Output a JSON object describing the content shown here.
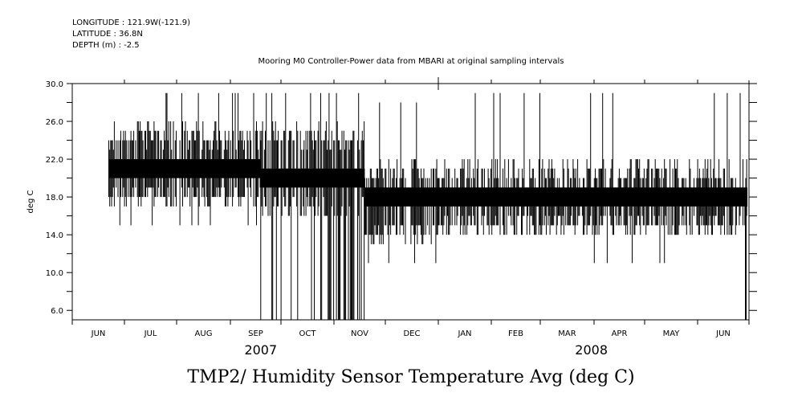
{
  "header": {
    "longitude": "LONGITUDE : 121.9W(-121.9)",
    "latitude": "LATITUDE : 36.8N",
    "depth": "DEPTH (m) : -2.5"
  },
  "colors": {
    "ink": "#000000",
    "background": "#ffffff"
  },
  "chart_data": {
    "type": "line",
    "title": "Mooring M0 Controller-Power data from MBARI at original sampling intervals",
    "xlabel_main": "TMP2/ Humidity Sensor Temperature Avg (deg C)",
    "ylabel": "deg C",
    "ylim": [
      5.0,
      30.0
    ],
    "yticks_labeled": [
      "30.0",
      "26.0",
      "22.0",
      "18.0",
      "14.0",
      "10.0",
      "6.0"
    ],
    "ytick_values": [
      30,
      26,
      22,
      18,
      14,
      10,
      6
    ],
    "yminor_values": [
      28,
      24,
      20,
      16,
      12,
      8
    ],
    "xlim_months": [
      0,
      13.05
    ],
    "month_labels": [
      "JUN",
      "JUL",
      "AUG",
      "SEP",
      "OCT",
      "NOV",
      "DEC",
      "JAN",
      "FEB",
      "MAR",
      "APR",
      "MAY",
      "JUN"
    ],
    "year_labels": [
      {
        "label": "2007",
        "month_pos": 3.6
      },
      {
        "label": "2008",
        "month_pos": 9.95
      }
    ],
    "grid": false,
    "series": [
      {
        "name": "TMP2",
        "segments": [
          {
            "start": 0.7,
            "end": 3.6,
            "base": 21,
            "low": 18,
            "high": 26,
            "spike_low": 15,
            "spike_high": 29
          },
          {
            "start": 3.6,
            "end": 5.6,
            "base": 20,
            "low": 17,
            "high": 26,
            "spike_low": 5,
            "spike_high": 29
          },
          {
            "start": 5.6,
            "end": 7.0,
            "base": 18,
            "low": 14,
            "high": 22,
            "spike_low": 11,
            "spike_high": 28
          },
          {
            "start": 7.0,
            "end": 12.97,
            "base": 18,
            "low": 15,
            "high": 22,
            "spike_low": 11,
            "spike_high": 29
          }
        ]
      }
    ]
  }
}
